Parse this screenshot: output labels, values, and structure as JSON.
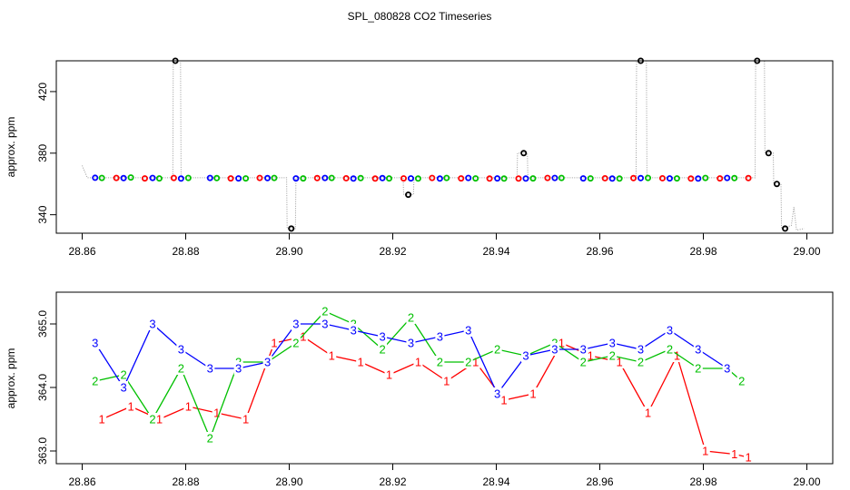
{
  "title": "SPL_080828  CO2 Timeseries",
  "chart_data": [
    {
      "type": "scatter",
      "ylabel": "approx. ppm",
      "xlim": [
        28.855,
        29.005
      ],
      "ylim": [
        328,
        440
      ],
      "xticks": [
        28.86,
        28.88,
        28.9,
        28.92,
        28.94,
        28.96,
        28.98,
        29.0
      ],
      "xtick_labels": [
        "28.86",
        "28.88",
        "28.90",
        "28.92",
        "28.94",
        "28.96",
        "28.98",
        "29.00"
      ],
      "yticks": [
        340,
        380,
        420
      ],
      "ytick_labels": [
        "340",
        "380",
        "420"
      ],
      "trace": [
        [
          28.86,
          372
        ],
        [
          28.861,
          364
        ],
        [
          28.8775,
          364
        ],
        [
          28.8776,
          440
        ],
        [
          28.879,
          440
        ],
        [
          28.8791,
          364
        ],
        [
          28.8995,
          364
        ],
        [
          28.8996,
          331
        ],
        [
          28.9012,
          331
        ],
        [
          28.9013,
          364
        ],
        [
          28.922,
          364
        ],
        [
          28.9221,
          353
        ],
        [
          28.924,
          353
        ],
        [
          28.9241,
          364
        ],
        [
          28.944,
          364
        ],
        [
          28.9441,
          380
        ],
        [
          28.946,
          380
        ],
        [
          28.9461,
          364
        ],
        [
          28.967,
          364
        ],
        [
          28.9671,
          440
        ],
        [
          28.969,
          440
        ],
        [
          28.9691,
          364
        ],
        [
          28.99,
          364
        ],
        [
          28.9901,
          440
        ],
        [
          28.9918,
          440
        ],
        [
          28.9919,
          380
        ],
        [
          28.9935,
          380
        ],
        [
          28.9936,
          360
        ],
        [
          28.995,
          360
        ],
        [
          28.9951,
          331
        ],
        [
          28.997,
          333
        ],
        [
          28.9975,
          345
        ],
        [
          28.998,
          330
        ],
        [
          28.9995,
          331
        ]
      ],
      "series": [
        {
          "name": "1",
          "color": "#ff0000",
          "x": [
            28.8666,
            28.8721,
            28.8777,
            28.8887,
            28.8943,
            28.9054,
            28.911,
            28.9166,
            28.9221,
            28.9276,
            28.9332,
            28.9387,
            28.9443,
            28.9499,
            28.961,
            28.9665,
            28.9721,
            28.9776,
            28.9832,
            28.9887
          ],
          "y": [
            363.9,
            363.6,
            363.9,
            363.6,
            363.9,
            363.8,
            363.7,
            363.5,
            363.6,
            363.9,
            363.6,
            363.5,
            363.5,
            363.9,
            363.7,
            363.8,
            363.7,
            363.5,
            363.6,
            363.8
          ]
        },
        {
          "name": "2",
          "color": "#00c000",
          "x": [
            28.8638,
            28.8694,
            28.8749,
            28.8805,
            28.886,
            28.8916,
            28.8971,
            28.9027,
            28.9082,
            28.9138,
            28.9193,
            28.9249,
            28.9304,
            28.936,
            28.9415,
            28.9471,
            28.9526,
            28.9582,
            28.9638,
            28.9693,
            28.9749,
            28.9804,
            28.986
          ],
          "y": [
            363.9,
            364.2,
            363.6,
            363.9,
            363.8,
            363.6,
            363.9,
            363.6,
            363.9,
            363.8,
            363.6,
            363.5,
            363.9,
            363.6,
            363.5,
            363.6,
            363.9,
            363.6,
            363.5,
            363.9,
            363.6,
            363.9,
            363.8
          ]
        },
        {
          "name": "3",
          "color": "#0000ff",
          "x": [
            28.8625,
            28.868,
            28.8736,
            28.8791,
            28.8847,
            28.8902,
            28.8958,
            28.9013,
            28.9069,
            28.9124,
            28.918,
            28.9235,
            28.9291,
            28.9346,
            28.9402,
            28.9457,
            28.9513,
            28.9568,
            28.9624,
            28.9679,
            28.9735,
            28.979,
            28.9846
          ],
          "y": [
            364.0,
            363.8,
            363.9,
            363.5,
            363.9,
            363.6,
            363.8,
            363.6,
            363.9,
            363.5,
            363.8,
            363.6,
            363.5,
            363.9,
            363.6,
            363.5,
            363.9,
            363.6,
            363.5,
            363.8,
            363.6,
            363.5,
            363.9
          ]
        }
      ],
      "outliers": [
        [
          28.878,
          440
        ],
        [
          28.9004,
          331
        ],
        [
          28.923,
          353
        ],
        [
          28.9453,
          380
        ],
        [
          28.9679,
          440
        ],
        [
          28.9904,
          440
        ],
        [
          28.9926,
          380
        ],
        [
          28.9942,
          360
        ],
        [
          28.9958,
          331
        ]
      ]
    },
    {
      "type": "line",
      "ylabel": "approx. ppm",
      "xlim": [
        28.855,
        29.005
      ],
      "ylim": [
        362.8,
        365.5
      ],
      "xticks": [
        28.86,
        28.88,
        28.9,
        28.92,
        28.94,
        28.96,
        28.98,
        29.0
      ],
      "xtick_labels": [
        "28.86",
        "28.88",
        "28.90",
        "28.92",
        "28.94",
        "28.96",
        "28.98",
        "29.00"
      ],
      "yticks": [
        363.0,
        364.0,
        365.0
      ],
      "ytick_labels": [
        "363.0",
        "364.0",
        "365.0"
      ],
      "series": [
        {
          "name": "1",
          "color": "#ff0000",
          "x": [
            28.8638,
            28.8694,
            28.8749,
            28.8805,
            28.886,
            28.8916,
            28.8971,
            28.9027,
            28.9082,
            28.9138,
            28.9193,
            28.9249,
            28.9304,
            28.936,
            28.9415,
            28.9471,
            28.9526,
            28.9582,
            28.9638,
            28.9693,
            28.9749,
            28.9804,
            28.986,
            28.9887
          ],
          "y": [
            363.5,
            363.7,
            363.5,
            363.7,
            363.6,
            363.5,
            364.7,
            364.8,
            364.5,
            364.4,
            364.2,
            364.4,
            364.1,
            364.4,
            363.8,
            363.9,
            364.7,
            364.5,
            364.4,
            363.6,
            364.5,
            363.0,
            362.95,
            362.9
          ]
        },
        {
          "name": "2",
          "color": "#00c000",
          "x": [
            28.8625,
            28.868,
            28.8736,
            28.8791,
            28.8847,
            28.8902,
            28.8958,
            28.9013,
            28.9069,
            28.9124,
            28.918,
            28.9235,
            28.9291,
            28.9346,
            28.9402,
            28.9457,
            28.9513,
            28.9568,
            28.9624,
            28.9679,
            28.9735,
            28.979,
            28.9846,
            28.9874
          ],
          "y": [
            364.1,
            364.2,
            363.5,
            364.3,
            363.2,
            364.4,
            364.4,
            364.7,
            365.2,
            365.0,
            364.6,
            365.1,
            364.4,
            364.4,
            364.6,
            364.5,
            364.7,
            364.4,
            364.5,
            364.4,
            364.6,
            364.3,
            364.3,
            364.1
          ]
        },
        {
          "name": "3",
          "color": "#0000ff",
          "x": [
            28.8625,
            28.868,
            28.8736,
            28.8791,
            28.8847,
            28.8902,
            28.8958,
            28.9013,
            28.9069,
            28.9124,
            28.918,
            28.9235,
            28.9291,
            28.9346,
            28.9402,
            28.9457,
            28.9513,
            28.9568,
            28.9624,
            28.9679,
            28.9735,
            28.979,
            28.9846
          ],
          "y": [
            364.7,
            364.0,
            365.0,
            364.6,
            364.3,
            364.3,
            364.4,
            365.0,
            365.0,
            364.9,
            364.8,
            364.7,
            364.8,
            364.9,
            363.9,
            364.5,
            364.6,
            364.6,
            364.7,
            364.6,
            364.9,
            364.6,
            364.3
          ]
        }
      ]
    }
  ]
}
